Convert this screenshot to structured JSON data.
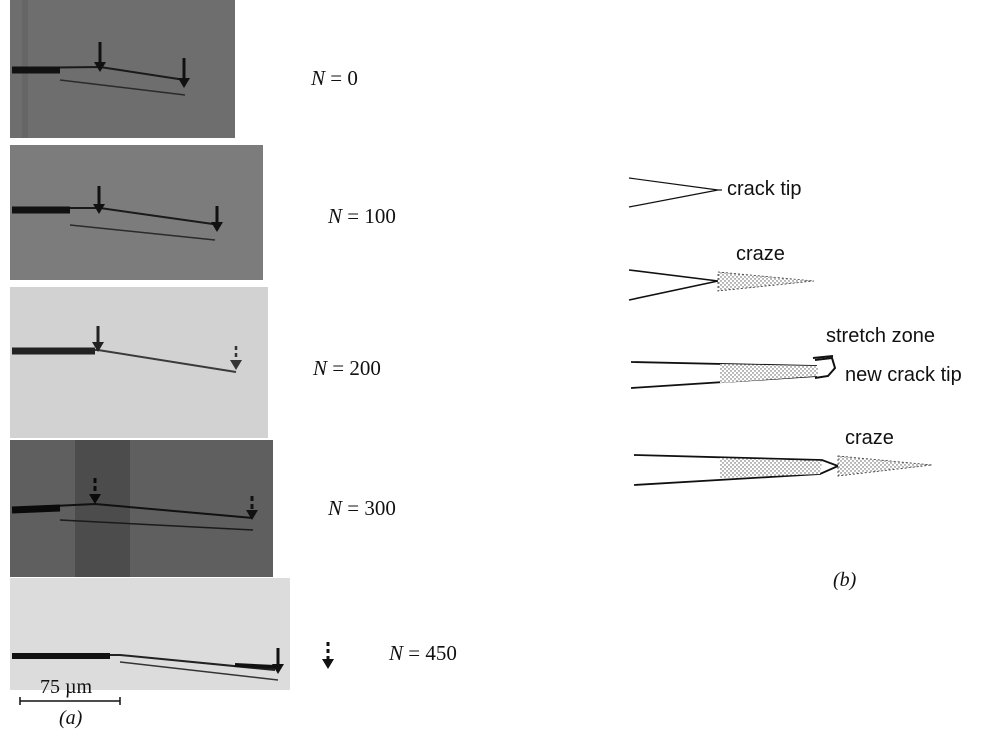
{
  "panel_a": {
    "caption": "(a)",
    "scale_bar_label": "75 µm",
    "cycle_labels": [
      {
        "prefix": "N",
        "value": "= 0"
      },
      {
        "prefix": "N",
        "value": "= 100"
      },
      {
        "prefix": "N",
        "value": "= 200"
      },
      {
        "prefix": "N",
        "value": "= 300"
      },
      {
        "prefix": "N",
        "value": "= 450"
      }
    ]
  },
  "panel_b": {
    "caption": "(b)",
    "labels": {
      "crack_tip": "crack tip",
      "craze_1": "craze",
      "stretch_zone": "stretch zone",
      "new_crack_tip": "new crack tip",
      "craze_2": "craze"
    }
  },
  "colors": {
    "frame_dark": "#6e6e6e",
    "frame_mid": "#7c7c7c",
    "frame_light": "#d2d2d2",
    "frame_dark2": "#5f5f5f",
    "frame_light2": "#dcdcdc",
    "ink": "#111111"
  }
}
